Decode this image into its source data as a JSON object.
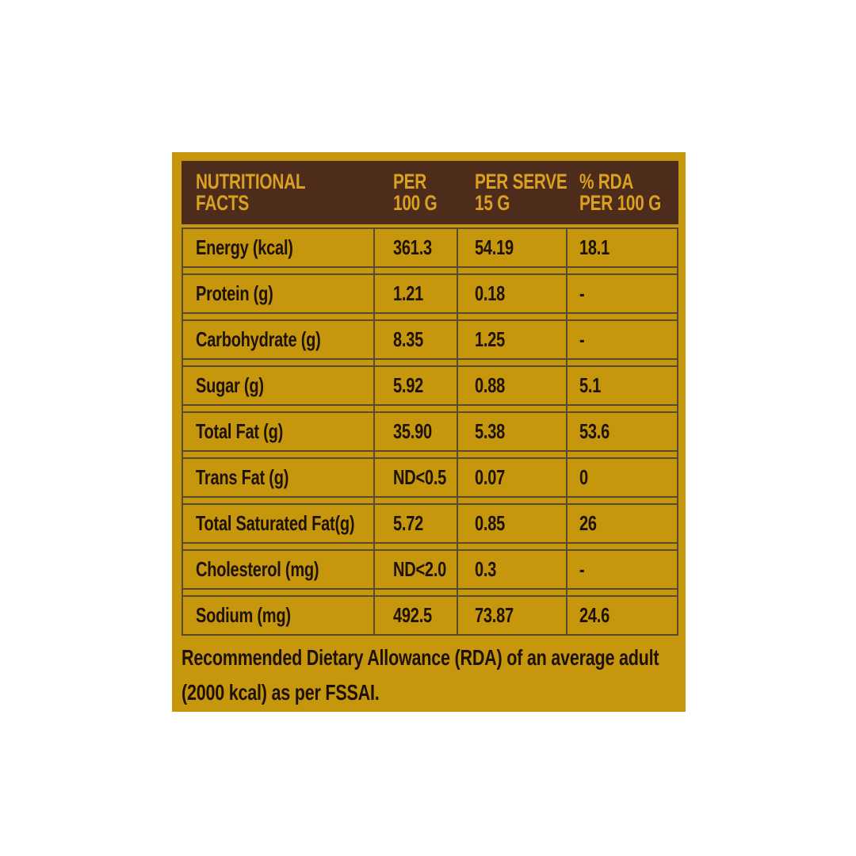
{
  "colors": {
    "page_bg": "#ffffff",
    "panel_bg": "#c6960d",
    "header_bg": "#4d2c1b",
    "header_text": "#d9a11f",
    "body_text": "#1e1206",
    "grid_line": "#584a2f"
  },
  "table": {
    "header": [
      {
        "line1": "NUTRITIONAL",
        "line2": "FACTS"
      },
      {
        "line1": "PER",
        "line2": "100 G"
      },
      {
        "line1": "PER SERVE",
        "line2": "15 G"
      },
      {
        "line1": "% RDA",
        "line2": "PER 100 G"
      }
    ],
    "rows": [
      {
        "label": "Energy (kcal)",
        "per_100g": "361.3",
        "per_serve": "54.19",
        "rda_per_100g": "18.1"
      },
      {
        "label": "Protein (g)",
        "per_100g": "1.21",
        "per_serve": "0.18",
        "rda_per_100g": "-"
      },
      {
        "label": "Carbohydrate (g)",
        "per_100g": "8.35",
        "per_serve": "1.25",
        "rda_per_100g": "-"
      },
      {
        "label": "Sugar (g)",
        "per_100g": "5.92",
        "per_serve": "0.88",
        "rda_per_100g": "5.1"
      },
      {
        "label": "Total Fat (g)",
        "per_100g": "35.90",
        "per_serve": "5.38",
        "rda_per_100g": "53.6"
      },
      {
        "label": "Trans Fat (g)",
        "per_100g": "ND<0.5",
        "per_serve": "0.07",
        "rda_per_100g": "0"
      },
      {
        "label": "Total Saturated Fat(g)",
        "per_100g": "5.72",
        "per_serve": "0.85",
        "rda_per_100g": "26"
      },
      {
        "label": "Cholesterol (mg)",
        "per_100g": "ND<2.0",
        "per_serve": "0.3",
        "rda_per_100g": "-"
      },
      {
        "label": "Sodium (mg)",
        "per_100g": "492.5",
        "per_serve": "73.87",
        "rda_per_100g": "24.6"
      }
    ]
  },
  "footnote": {
    "lines": [
      "Recommended Dietary Allowance (RDA) of an average adult",
      "(2000 kcal) as per FSSAI."
    ]
  }
}
